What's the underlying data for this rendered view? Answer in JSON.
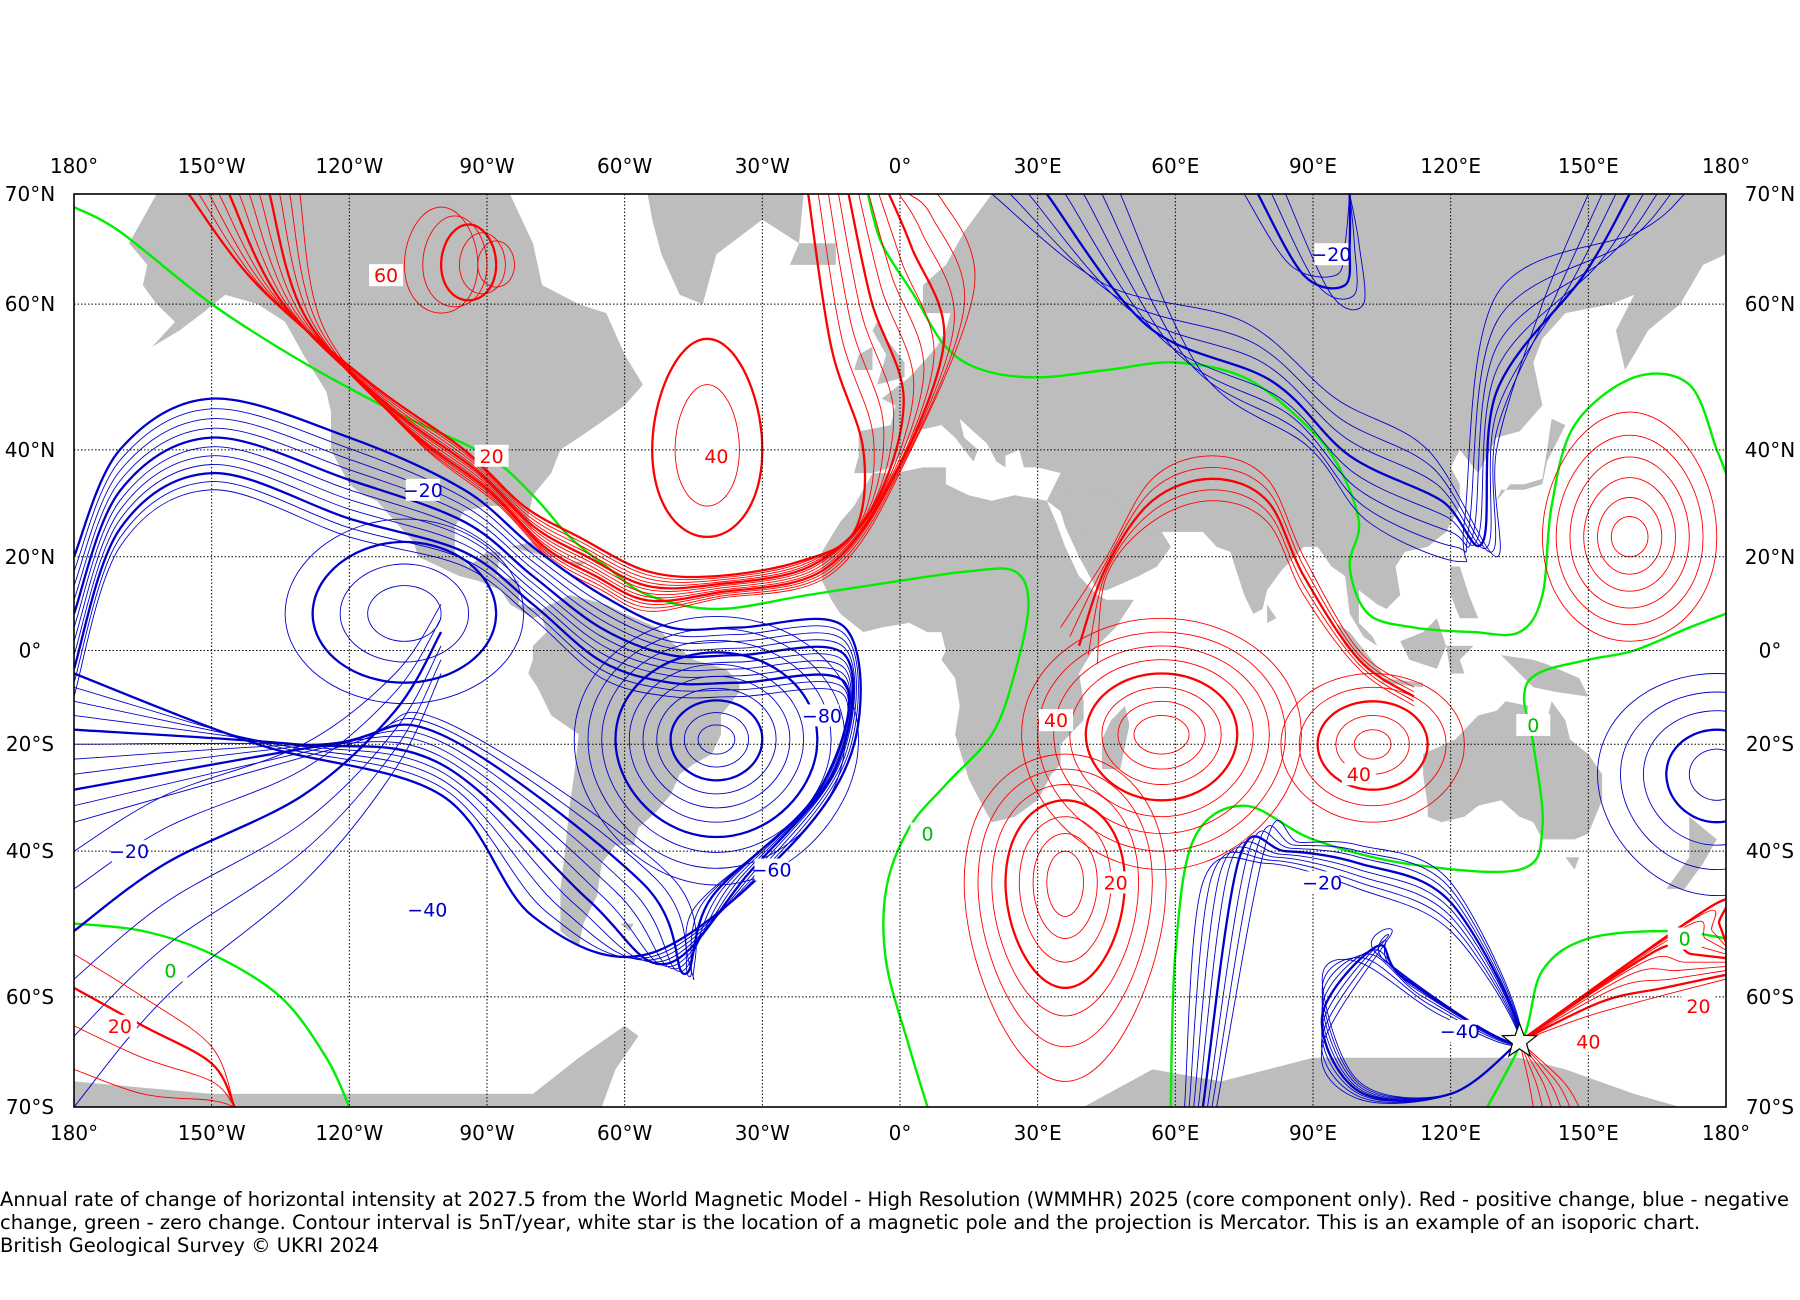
{
  "map": {
    "projection": "Mercator",
    "extent": {
      "lon": [
        -180,
        180
      ],
      "lat": [
        -70,
        70
      ]
    },
    "top_lon_ticks": [
      "180°",
      "150°W",
      "120°W",
      "90°W",
      "60°W",
      "30°W",
      "0°",
      "30°E",
      "60°E",
      "90°E",
      "120°E",
      "150°E",
      "180°"
    ],
    "bottom_lon_ticks": [
      "180°",
      "150°W",
      "120°W",
      "90°W",
      "60°W",
      "30°W",
      "0°",
      "30°E",
      "60°E",
      "90°E",
      "120°E",
      "150°E",
      "180°"
    ],
    "left_lat_ticks": [
      "70°N",
      "60°N",
      "40°N",
      "20°N",
      "0°",
      "20°S",
      "40°S",
      "60°S",
      "70°S"
    ],
    "right_lat_ticks": [
      "70°N",
      "60°N",
      "40°N",
      "20°N",
      "0°",
      "20°S",
      "40°S",
      "60°S",
      "70°S"
    ],
    "colors": {
      "positive": "#ff0000",
      "negative": "#0000cc",
      "zero": "#00ee00",
      "land": "#bdbdbd",
      "grid": "#000000",
      "star": "#ffffff"
    },
    "contour_labels": [
      {
        "text": "60",
        "sign": "positive",
        "lon": -112,
        "lat": 63
      },
      {
        "text": "40",
        "sign": "positive",
        "lon": -40,
        "lat": 39
      },
      {
        "text": "20",
        "sign": "positive",
        "lon": -89,
        "lat": 39
      },
      {
        "text": "−20",
        "sign": "negative",
        "lon": -104,
        "lat": 33
      },
      {
        "text": "−20",
        "sign": "negative",
        "lon": 94,
        "lat": 65
      },
      {
        "text": "−80",
        "sign": "negative",
        "lon": -17,
        "lat": -14
      },
      {
        "text": "−60",
        "sign": "negative",
        "lon": -28,
        "lat": -43
      },
      {
        "text": "−40",
        "sign": "negative",
        "lon": -103,
        "lat": -49
      },
      {
        "text": "−20",
        "sign": "negative",
        "lon": -168,
        "lat": -40
      },
      {
        "text": "0",
        "sign": "zero",
        "lon": -159,
        "lat": -57
      },
      {
        "text": "20",
        "sign": "positive",
        "lon": -170,
        "lat": -63
      },
      {
        "text": "0",
        "sign": "zero",
        "lon": 6,
        "lat": -37
      },
      {
        "text": "40",
        "sign": "positive",
        "lon": 34,
        "lat": -15
      },
      {
        "text": "20",
        "sign": "positive",
        "lon": 47,
        "lat": -45
      },
      {
        "text": "40",
        "sign": "positive",
        "lon": 100,
        "lat": -26
      },
      {
        "text": "−20",
        "sign": "negative",
        "lon": 92,
        "lat": -45
      },
      {
        "text": "−40",
        "sign": "negative",
        "lon": 122,
        "lat": -63.5
      },
      {
        "text": "0",
        "sign": "zero",
        "lon": 138,
        "lat": -16
      },
      {
        "text": "0",
        "sign": "zero",
        "lon": 171,
        "lat": -53
      },
      {
        "text": "20",
        "sign": "positive",
        "lon": 174,
        "lat": -61
      },
      {
        "text": "40",
        "sign": "positive",
        "lon": 150,
        "lat": -64.5
      }
    ],
    "magnetic_pole": {
      "lon": 135,
      "lat": -64.5,
      "icon": "star-icon"
    }
  },
  "caption": {
    "text": "Annual rate of change of horizontal intensity at 2027.5 from the World Magnetic Model - High Resolution (WMMHR) 2025 (core component only). Red - positive change, blue - negative change, green - zero change. Contour interval is 5nT/year, white star is the location of a magnetic pole and the projection is Mercator. This is an example of an isoporic chart.",
    "credit": "British Geological Survey © UKRI 2024"
  }
}
